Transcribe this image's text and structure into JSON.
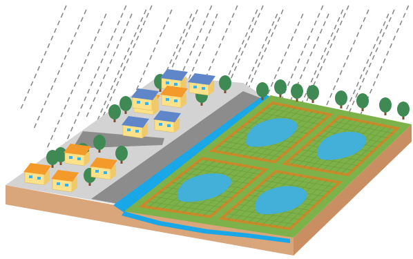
{
  "scene": {
    "subject": "isometric-rain-over-village-and-flooding-paddy-fields",
    "colors": {
      "sky": "#ffffff",
      "rain": "#8a8a8a",
      "soil_side": "#d9a57a",
      "soil_top_edge": "#c98f62",
      "village_ground": "#d3d3d3",
      "road": "#8c8c8c",
      "canal": "#1aa7e8",
      "paddy": "#7db24a",
      "paddy_grid": "#6a9c3c",
      "levee": "#c98a2b",
      "flood_water": "#3fb0e0",
      "house_wall": "#fde28a",
      "roof_orange": "#f39a2b",
      "roof_blue": "#5f86c8",
      "tree_leaf": "#3f8a54",
      "tree_trunk": "#7a5230"
    },
    "houses": [
      {
        "roof": "orange"
      },
      {
        "roof": "orange"
      },
      {
        "roof": "orange"
      },
      {
        "roof": "orange"
      },
      {
        "roof": "blue"
      },
      {
        "roof": "orange"
      },
      {
        "roof": "blue"
      },
      {
        "roof": "blue"
      },
      {
        "roof": "blue"
      },
      {
        "roof": "orange"
      },
      {
        "roof": "blue"
      }
    ],
    "field_count": 4,
    "rain_streak_count": 26
  }
}
